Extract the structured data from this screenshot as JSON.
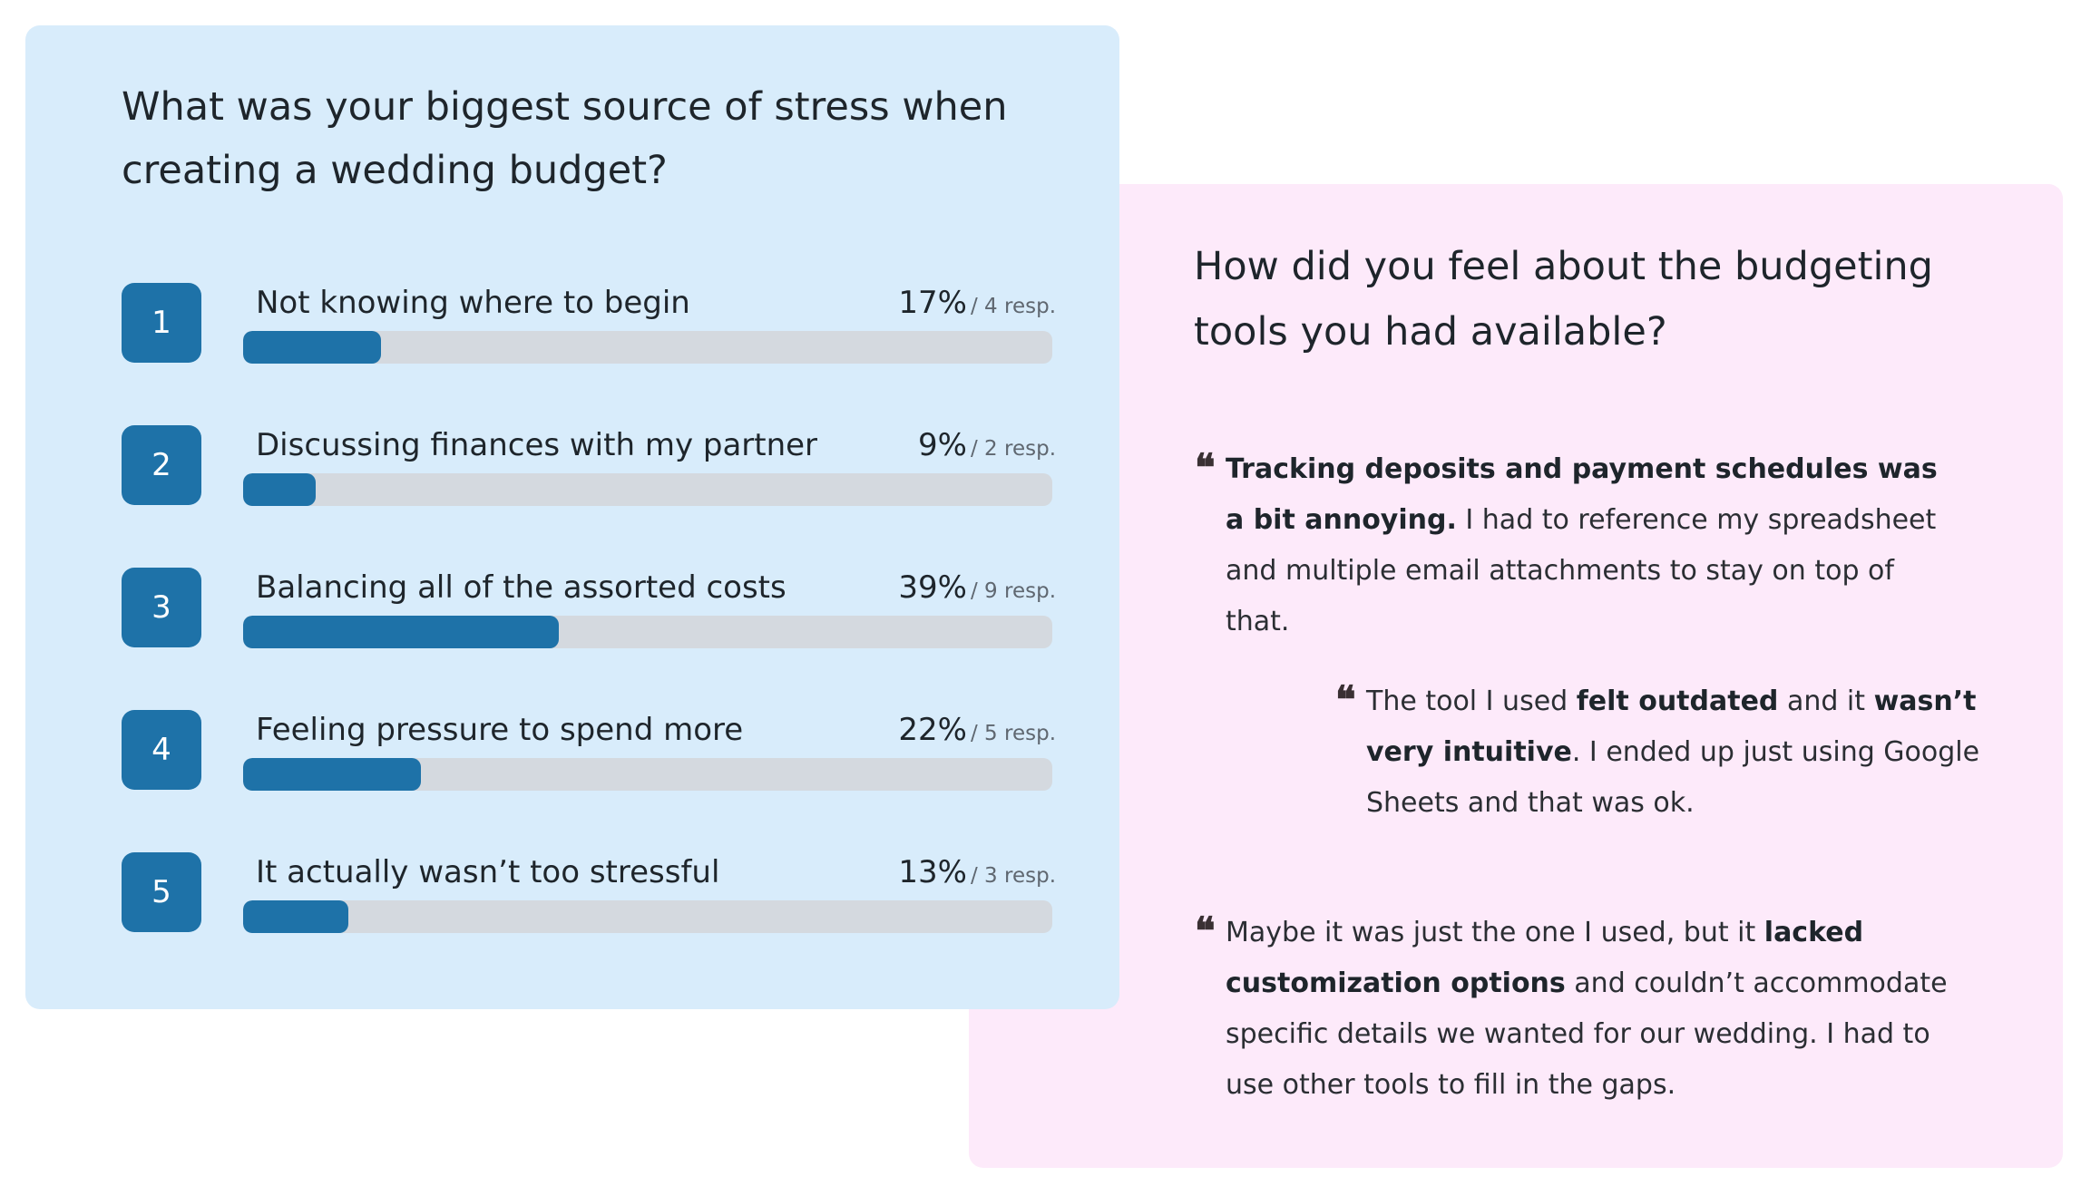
{
  "survey": {
    "title": "What was your biggest source of stress when creating a wedding budget?",
    "accent_color": "#1e72a8",
    "track_color": "#d4d9df",
    "card_color": "#d8ecfb"
  },
  "chart_data": {
    "type": "bar",
    "orientation": "horizontal",
    "title": "What was your biggest source of stress when creating a wedding budget?",
    "categories": [
      "Not knowing where to begin",
      "Discussing finances with my partner",
      "Balancing all of the assorted costs",
      "Feeling pressure to spend more",
      "It actually wasn’t too stressful"
    ],
    "ranks": [
      "1",
      "2",
      "3",
      "4",
      "5"
    ],
    "values": [
      17,
      9,
      39,
      22,
      13
    ],
    "value_labels": [
      "17%",
      "9%",
      "39%",
      "22%",
      "13%"
    ],
    "responses": [
      4,
      2,
      9,
      5,
      3
    ],
    "response_labels": [
      "/ 4 resp.",
      "/ 2 resp.",
      "/ 9 resp.",
      "/ 5 resp.",
      "/ 3 resp."
    ],
    "xlim": [
      0,
      100
    ],
    "unit": "%"
  },
  "quotes_panel": {
    "title": "How did you feel about the budgeting tools you had available?",
    "card_color": "#fdeafa",
    "quote_mark": "❝",
    "quotes": [
      {
        "parts": [
          {
            "text": "Tracking deposits and payment schedules was a bit annoying.",
            "bold": true
          },
          {
            "text": " I had to reference my spreadsheet and multiple email attachments to stay on top of that.",
            "bold": false
          }
        ]
      },
      {
        "parts": [
          {
            "text": "The tool I used ",
            "bold": false
          },
          {
            "text": "felt outdated",
            "bold": true
          },
          {
            "text": " and it ",
            "bold": false
          },
          {
            "text": "wasn’t very intuitive",
            "bold": true
          },
          {
            "text": ". I ended up just using Google Sheets and that was ok.",
            "bold": false
          }
        ]
      },
      {
        "parts": [
          {
            "text": "Maybe it was just the one I used, but it ",
            "bold": false
          },
          {
            "text": "lacked customization options",
            "bold": true
          },
          {
            "text": " and couldn’t accommodate specific details we wanted for our wedding. I had to use other tools to fill in the gaps.",
            "bold": false
          }
        ]
      }
    ]
  }
}
